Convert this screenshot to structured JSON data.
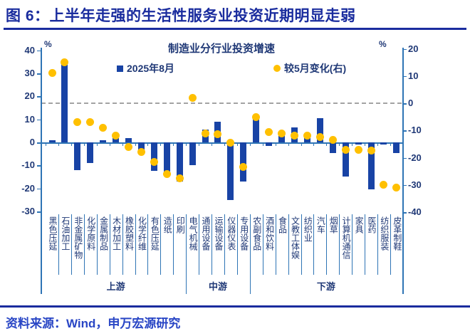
{
  "header": {
    "title": "图 6：上半年走强的生活性服务业投资近期明显走弱"
  },
  "footer": {
    "source": "资料来源：Wind，申万宏源研究"
  },
  "chart_data": {
    "type": "bar",
    "title": "制造业分行业投资增速",
    "legend_position": "top",
    "grid": false,
    "left_axis": {
      "label": "%",
      "min": -30,
      "max": 40,
      "ticks": [
        40,
        30,
        20,
        10,
        0,
        -10,
        -20,
        -30
      ]
    },
    "right_axis": {
      "label": "%",
      "min": -40,
      "max": 20,
      "ticks": [
        20,
        10,
        0,
        -10,
        -20,
        -30,
        -40
      ]
    },
    "categories": [
      "黑色压延",
      "石油加工",
      "非金属矿物",
      "化学原料",
      "金属制品",
      "木材加工",
      "橡胶塑料",
      "化学纤维",
      "有色压延",
      "造纸",
      "印刷",
      "电气机械",
      "通用设备",
      "运输设备",
      "仪器仪表",
      "专用设备",
      "农副食品",
      "酒和饮料",
      "食品",
      "文教工体娱",
      "纺织业",
      "汽车",
      "烟草",
      "计算机通信",
      "家具",
      "医药",
      "纺织服装",
      "皮革制鞋"
    ],
    "groups": [
      {
        "label": "上游",
        "start": 0,
        "end": 10
      },
      {
        "label": "中游",
        "start": 11,
        "end": 15
      },
      {
        "label": "下游",
        "start": 16,
        "end": 27
      }
    ],
    "series": [
      {
        "name": "2025年8月",
        "type": "bar",
        "axis": "left",
        "color": "#1843A5",
        "values": [
          1,
          35,
          -12,
          -9,
          1,
          2,
          2,
          -5,
          -12.5,
          -13.5,
          -17,
          -10,
          5.5,
          9,
          -25,
          -17,
          10.5,
          -1.5,
          3,
          6.5,
          3,
          10.5,
          -4.5,
          -15,
          -1,
          -20.5,
          -1,
          -4.5
        ]
      },
      {
        "name": "较5月变化(右)",
        "type": "scatter",
        "axis": "right",
        "color": "#FFC000",
        "values": [
          11,
          15,
          -7,
          -7,
          -9,
          -12,
          -16,
          -18,
          -21.5,
          -26,
          -27.5,
          2,
          -11,
          -11.5,
          -14.5,
          -23.5,
          -5,
          -10.5,
          -11,
          -12,
          -12,
          -12.5,
          -13.5,
          -17,
          -17,
          -17.5,
          -30,
          -31
        ]
      }
    ],
    "reference_line": {
      "axis": "right",
      "value": 0,
      "style": "dashed",
      "color": "#A3A3A3"
    }
  }
}
